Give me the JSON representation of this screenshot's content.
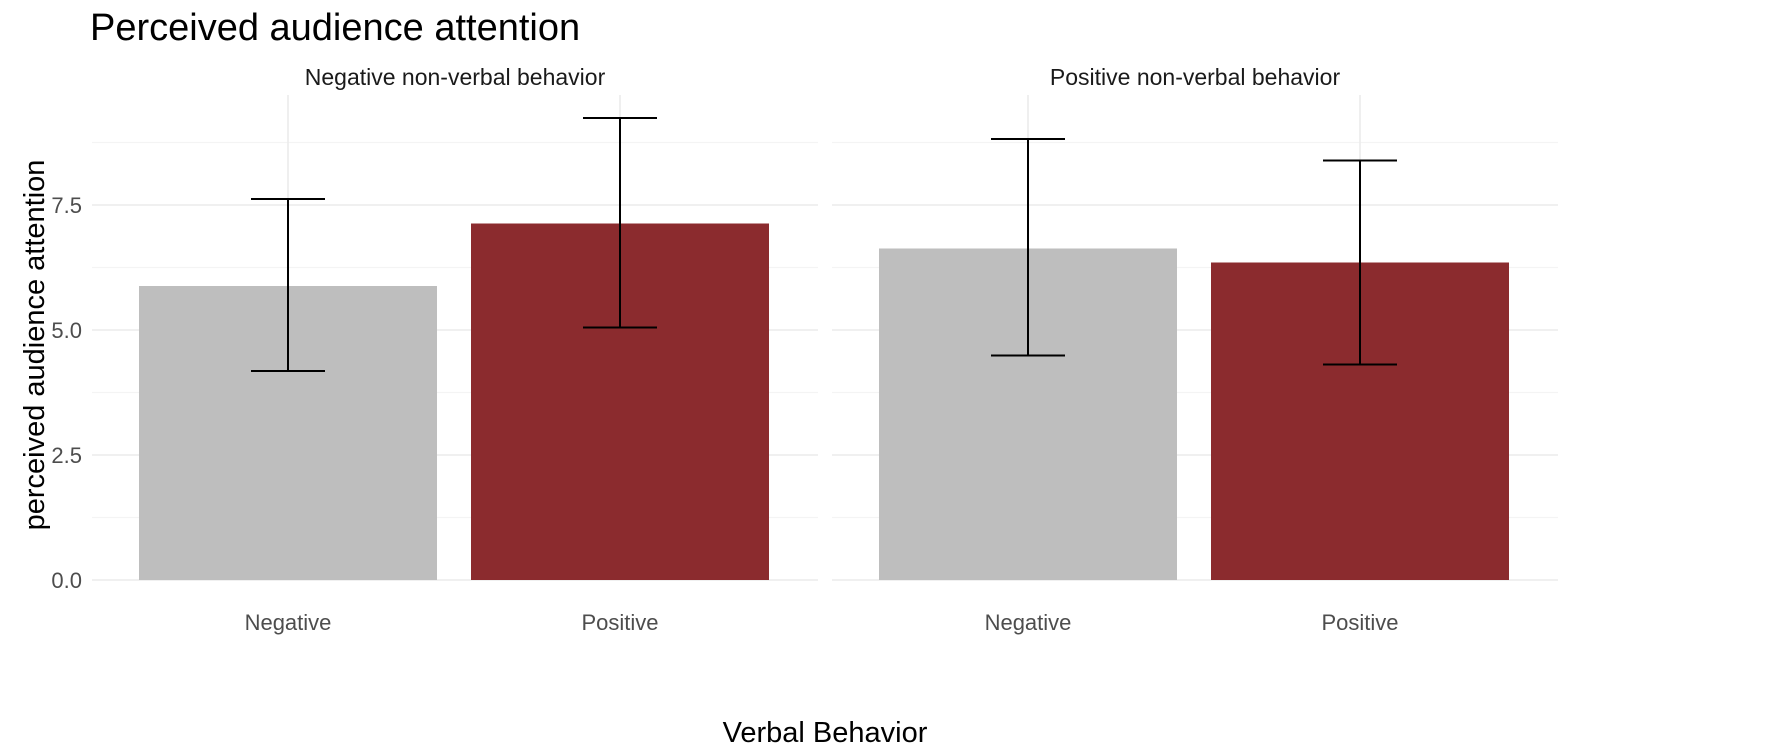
{
  "chart_data": {
    "type": "bar",
    "title": "Perceived audience attention",
    "xlabel": "Verbal Behavior",
    "ylabel": "perceived audience attention",
    "ylim": [
      0,
      9.7
    ],
    "yticks": [
      "0.0",
      "2.5",
      "5.0",
      "7.5"
    ],
    "ytick_values": [
      0,
      2.5,
      5,
      7.5
    ],
    "categories": [
      "Negative",
      "Positive"
    ],
    "colors": {
      "Negative": "#bebebe",
      "Positive": "#8b2b2e"
    },
    "panels": [
      {
        "label": "Negative non-verbal behavior",
        "bars": [
          {
            "category": "Negative",
            "value": 5.88,
            "lower": 4.18,
            "upper": 7.62
          },
          {
            "category": "Positive",
            "value": 7.13,
            "lower": 5.05,
            "upper": 9.24
          }
        ]
      },
      {
        "label": "Positive non-verbal behavior",
        "bars": [
          {
            "category": "Negative",
            "value": 6.63,
            "lower": 4.49,
            "upper": 8.82
          },
          {
            "category": "Positive",
            "value": 6.35,
            "lower": 4.31,
            "upper": 8.39
          }
        ]
      }
    ]
  }
}
